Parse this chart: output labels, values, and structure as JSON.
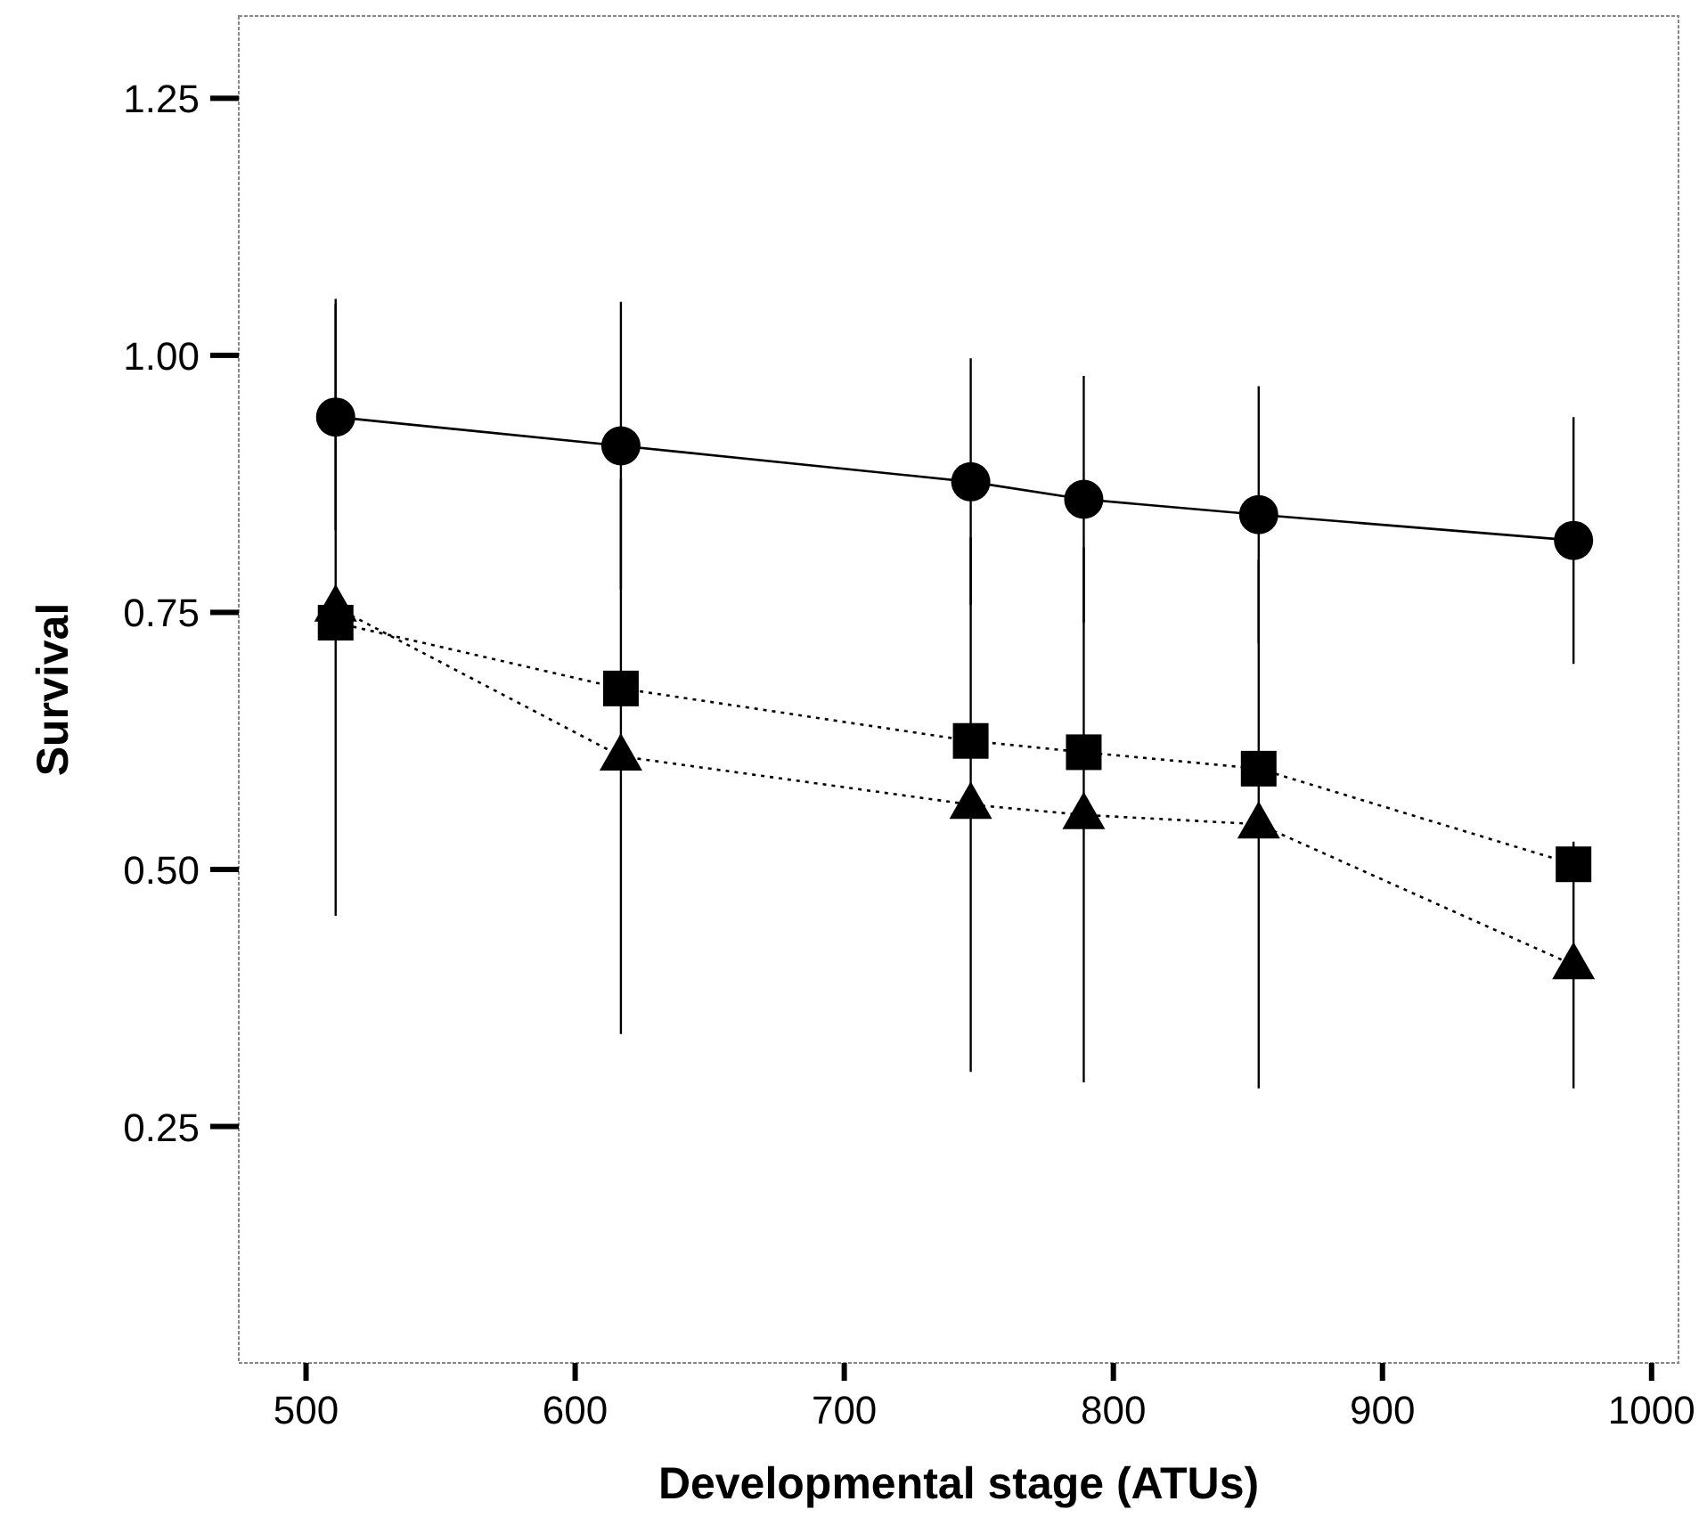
{
  "chart_data": {
    "type": "line",
    "xlabel": "Developmental stage (ATUs)",
    "ylabel": "Survival",
    "xlim": [
      475,
      1010
    ],
    "ylim": [
      0.02,
      1.33
    ],
    "xticks": [
      500,
      600,
      700,
      800,
      900,
      1000
    ],
    "yticks": [
      {
        "value": 0.25,
        "label": "0.25"
      },
      {
        "value": 0.5,
        "label": "0.50"
      },
      {
        "value": 0.75,
        "label": "0.75"
      },
      {
        "value": 1,
        "label": "1.00"
      },
      {
        "value": 1.25,
        "label": "1.25"
      }
    ],
    "grid": false,
    "x": [
      511,
      617,
      747,
      789,
      854,
      971
    ],
    "series": [
      {
        "color": "#000000",
        "marker": "circle",
        "line_style": "solid",
        "values": [
          0.94,
          0.912,
          0.877,
          0.86,
          0.845,
          0.82
        ],
        "errors": [
          0.11,
          0.14,
          0.12,
          0.12,
          0.125,
          0.12
        ]
      },
      {
        "color": "#000000",
        "marker": "square",
        "line_style": "dotted",
        "values": [
          0.74,
          0.676,
          0.625,
          0.614,
          0.598,
          0.505
        ]
      },
      {
        "color": "#000000",
        "marker": "triangle",
        "line_style": "dotted",
        "values": [
          0.755,
          0.61,
          0.563,
          0.553,
          0.544,
          0.407
        ],
        "errors": [
          0.3,
          0.27,
          0.26,
          0.26,
          0.257,
          0.12
        ]
      }
    ]
  }
}
